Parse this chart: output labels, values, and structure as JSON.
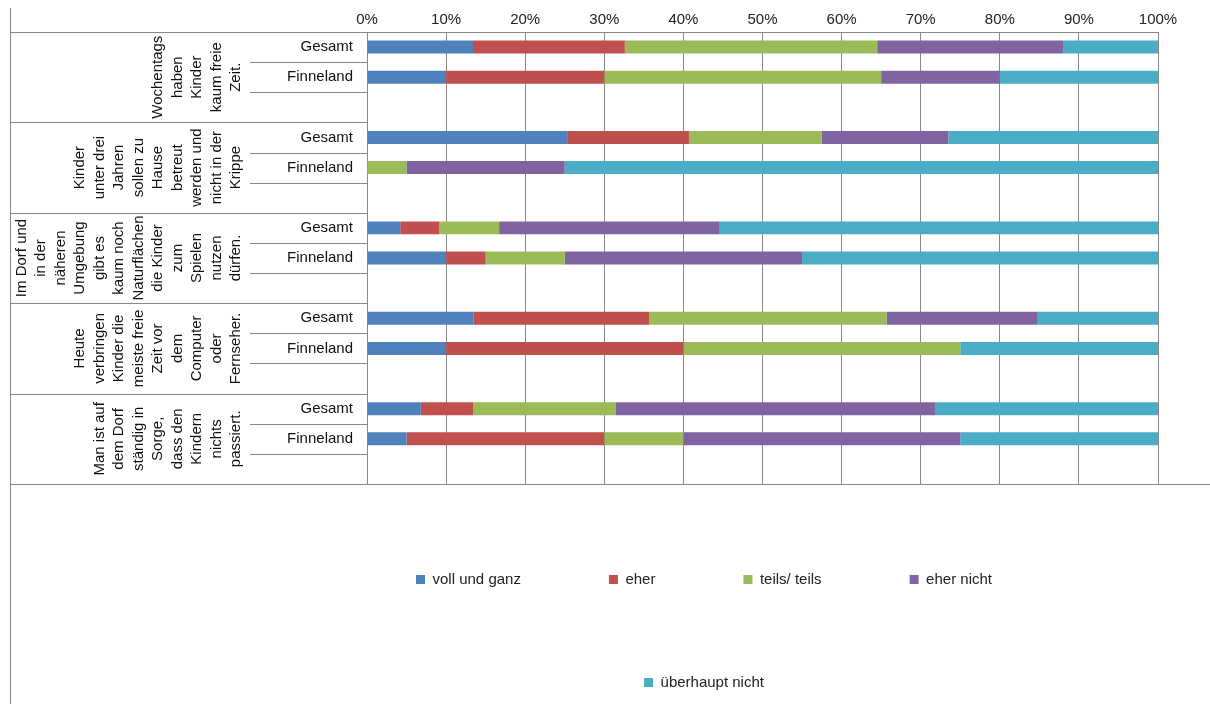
{
  "chart_data": {
    "type": "bar",
    "orientation": "horizontal",
    "stacked": true,
    "categories": [
      "Gesamt",
      "Finneland",
      null,
      "Gesamt",
      "Finneland",
      null,
      "Gesamt",
      "Finneland",
      null,
      "Gesamt",
      "Finneland",
      null,
      "Gesamt",
      "Finneland",
      null
    ],
    "series": [
      {
        "name": "voll und ganz",
        "color": "#4f81bd",
        "values": [
          13.4,
          10,
          null,
          25.4,
          0,
          null,
          4.2,
          10,
          null,
          13.5,
          10,
          null,
          6.8,
          5,
          null
        ]
      },
      {
        "name": "eher",
        "color": "#c0504d",
        "values": [
          19.2,
          20,
          null,
          15.3,
          0,
          null,
          4.9,
          5,
          null,
          22.2,
          30,
          null,
          6.6,
          25,
          null
        ]
      },
      {
        "name": "teils/ teils",
        "color": "#9bbb59",
        "values": [
          31.9,
          35,
          null,
          16.8,
          5,
          null,
          7.6,
          10,
          null,
          30,
          35,
          null,
          18,
          10,
          null
        ]
      },
      {
        "name": "eher nicht",
        "color": "#8064a2",
        "values": [
          23.5,
          15,
          null,
          16,
          20,
          null,
          27.8,
          30,
          null,
          19.1,
          0,
          null,
          40.4,
          35,
          null
        ]
      },
      {
        "name": "überhaupt nicht",
        "color": "#4bacc6",
        "values": [
          12,
          20,
          null,
          26.5,
          75,
          null,
          55.5,
          45,
          null,
          15.2,
          25,
          null,
          28.2,
          25,
          null
        ]
      }
    ],
    "xlim": [
      0,
      100
    ],
    "xticks": [
      {
        "value": 0,
        "label": "0%"
      },
      {
        "value": 10,
        "label": "10%"
      },
      {
        "value": 20,
        "label": "20%"
      },
      {
        "value": 30,
        "label": "30%"
      },
      {
        "value": 40,
        "label": "40%"
      },
      {
        "value": 50,
        "label": "50%"
      },
      {
        "value": 60,
        "label": "60%"
      },
      {
        "value": 70,
        "label": "70%"
      },
      {
        "value": 80,
        "label": "80%"
      },
      {
        "value": 90,
        "label": "90%"
      },
      {
        "value": 100,
        "label": "100%"
      }
    ],
    "annotations": [
      "Wochentags haben Kinder kaum freie Zeit.",
      "Kinder unter drei Jahren sollen zu Hause betreut werden und nicht in der Krippe",
      "Im Dorf und in der näheren Umgebung gibt es kaum noch Naturflächen die Kinder zum Spielen nutzen dürfen.",
      "Heute verbringen Kinder die meiste freie Zeit vor dem Computer oder Fernseher.",
      "Man ist auf dem Dorf ständig in Sorge, dass den Kindern nichts passiert."
    ],
    "grid": "x",
    "legend": "bottom"
  }
}
